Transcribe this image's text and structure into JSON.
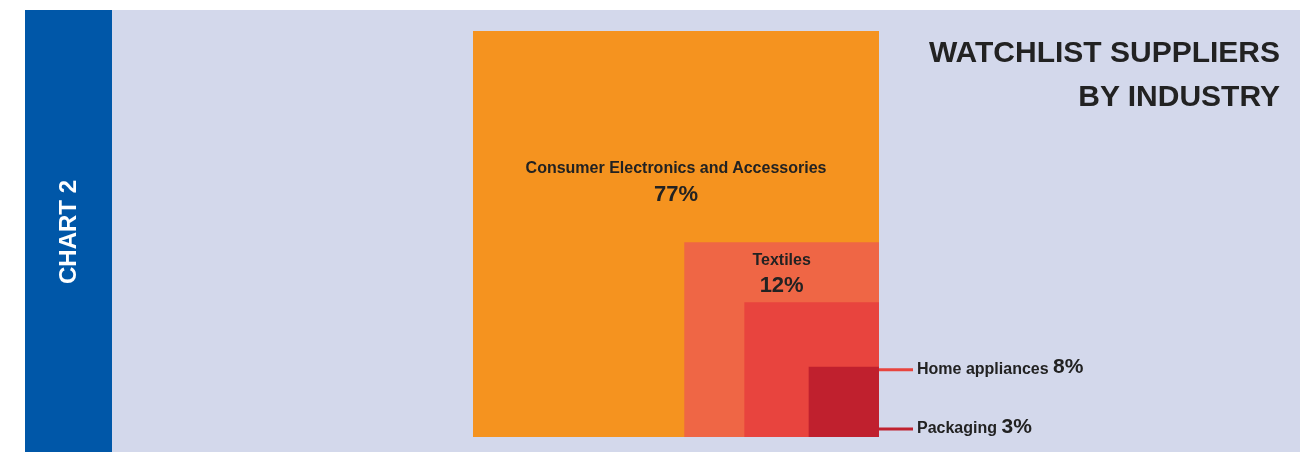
{
  "chart_data": {
    "type": "other",
    "title": "WATCHLIST SUPPLIERS BY INDUSTRY",
    "annotations": [
      "CHART 2"
    ],
    "categories": [
      "Consumer Electronics and Accessories",
      "Textiles",
      "Home appliances",
      "Packaging"
    ],
    "values": [
      77,
      12,
      8,
      3
    ],
    "value_labels": [
      "77%",
      "12%",
      "8%",
      "3%"
    ],
    "colors": [
      "#f5931f",
      "#ef6645",
      "#e8443e",
      "#c0202e"
    ]
  }
}
